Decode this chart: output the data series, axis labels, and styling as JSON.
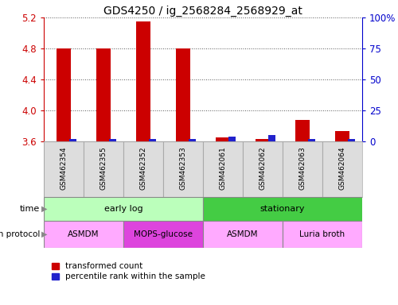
{
  "title": "GDS4250 / ig_2568284_2568929_at",
  "samples": [
    "GSM462354",
    "GSM462355",
    "GSM462352",
    "GSM462353",
    "GSM462061",
    "GSM462062",
    "GSM462063",
    "GSM462064"
  ],
  "transformed_count": [
    4.8,
    4.8,
    5.15,
    4.8,
    3.65,
    3.63,
    3.88,
    3.73
  ],
  "percentile_values": [
    2.0,
    2.0,
    2.0,
    2.0,
    4.0,
    5.0,
    2.0,
    2.0
  ],
  "ylim_left": [
    3.6,
    5.2
  ],
  "ylim_right": [
    0,
    100
  ],
  "yticks_left": [
    3.6,
    4.0,
    4.4,
    4.8,
    5.2
  ],
  "yticks_right": [
    0,
    25,
    50,
    75,
    100
  ],
  "ytick_labels_right": [
    "0",
    "25",
    "50",
    "75",
    "100%"
  ],
  "bar_bottom": 3.6,
  "bar_color_red": "#cc0000",
  "bar_color_blue": "#2222cc",
  "time_groups": [
    {
      "label": "early log",
      "start": 0,
      "end": 4,
      "color": "#bbffbb"
    },
    {
      "label": "stationary",
      "start": 4,
      "end": 8,
      "color": "#44cc44"
    }
  ],
  "protocol_groups": [
    {
      "label": "ASMDM",
      "start": 0,
      "end": 2,
      "color": "#ffaaff"
    },
    {
      "label": "MOPS-glucose",
      "start": 2,
      "end": 4,
      "color": "#dd44dd"
    },
    {
      "label": "ASMDM",
      "start": 4,
      "end": 6,
      "color": "#ffaaff"
    },
    {
      "label": "Luria broth",
      "start": 6,
      "end": 8,
      "color": "#ffaaff"
    }
  ],
  "legend_red_label": "transformed count",
  "legend_blue_label": "percentile rank within the sample",
  "time_label": "time",
  "protocol_label": "growth protocol",
  "left_axis_color": "#cc0000",
  "right_axis_color": "#0000cc",
  "grid_color": "#555555",
  "sample_cell_color": "#dddddd",
  "sample_cell_edge": "#aaaaaa"
}
